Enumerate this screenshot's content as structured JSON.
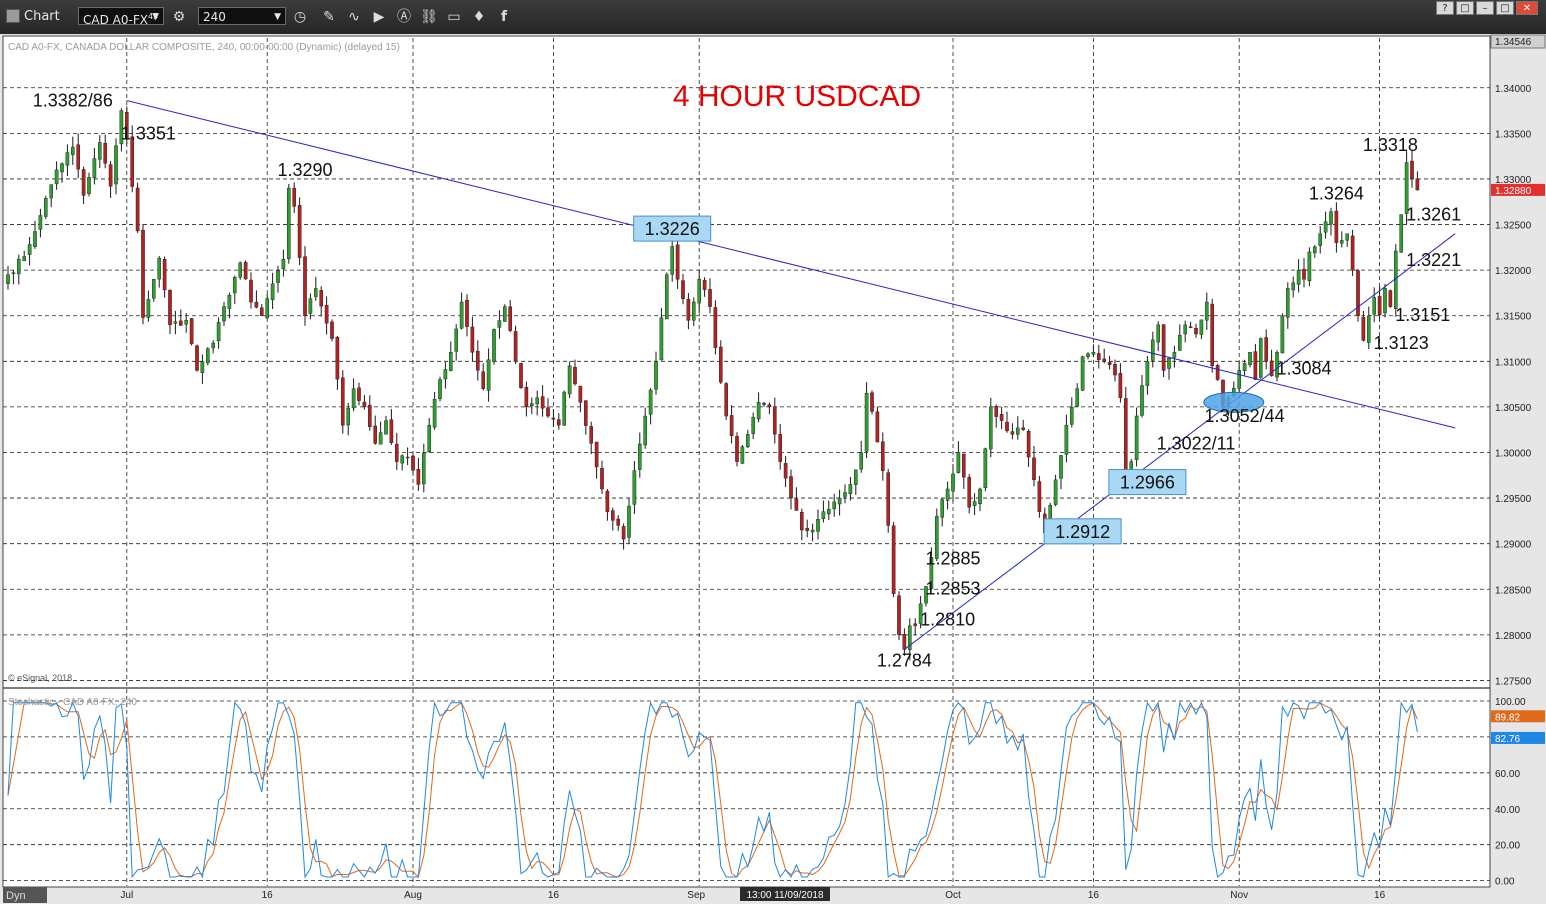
{
  "window": {
    "title": "Chart",
    "symbol": "CAD A0-FX",
    "symbol_superscript": "45",
    "interval": "240",
    "controls": [
      "?",
      "□",
      "–",
      "□",
      "✕"
    ]
  },
  "chart_data": [
    {
      "type": "candlestick",
      "header": "CAD A0-FX, CANADA DOLLAR COMPOSITE, 240, 00:00-00:00 (Dynamic) (delayed 15)",
      "title": "4 HOUR USDCAD",
      "copyright": "© eSignal, 2018",
      "xaxis_labels": [
        "Jul",
        "16",
        "Aug",
        "16",
        "Sep",
        "Oct",
        "16",
        "Nov",
        "16"
      ],
      "crosshair_time": "13:00 11/09/2018",
      "ylim": [
        1.2745,
        1.34546
      ],
      "yticks": [
        1.275,
        1.28,
        1.285,
        1.29,
        1.295,
        1.3,
        1.305,
        1.31,
        1.315,
        1.32,
        1.325,
        1.33,
        1.335,
        1.34
      ],
      "ytick_labels": [
        "1.27500",
        "1.28000",
        "1.28500",
        "1.29000",
        "1.29500",
        "1.30000",
        "1.30500",
        "1.31000",
        "1.31500",
        "1.32000",
        "1.32500",
        "1.33000",
        "1.33500",
        "1.34000"
      ],
      "top_price_label": "1.34546",
      "last_price": 1.3288,
      "last_price_label": "1.32880",
      "grid": true,
      "up_color": "#2e9e2e",
      "down_color": "#b22222",
      "series_path": [
        [
          0,
          1.3195
        ],
        [
          3,
          1.3215
        ],
        [
          6,
          1.326
        ],
        [
          9,
          1.331
        ],
        [
          12,
          1.3335
        ],
        [
          14,
          1.3282
        ],
        [
          17,
          1.334
        ],
        [
          19,
          1.3292
        ],
        [
          21,
          1.3375
        ],
        [
          22,
          1.3345
        ],
        [
          24,
          1.3243
        ],
        [
          25,
          1.3148
        ],
        [
          27,
          1.319
        ],
        [
          28,
          1.3213
        ],
        [
          30,
          1.314
        ],
        [
          33,
          1.3145
        ],
        [
          35,
          1.309
        ],
        [
          38,
          1.312
        ],
        [
          40,
          1.316
        ],
        [
          43,
          1.3208
        ],
        [
          45,
          1.3165
        ],
        [
          47,
          1.315
        ],
        [
          49,
          1.3185
        ],
        [
          51,
          1.3212
        ],
        [
          52,
          1.329
        ],
        [
          53,
          1.327
        ],
        [
          55,
          1.315
        ],
        [
          57,
          1.318
        ],
        [
          60,
          1.3125
        ],
        [
          62,
          1.303
        ],
        [
          64,
          1.307
        ],
        [
          66,
          1.305
        ],
        [
          68,
          1.301
        ],
        [
          70,
          1.3035
        ],
        [
          72,
          1.299
        ],
        [
          74,
          1.2995
        ],
        [
          76,
          1.2965
        ],
        [
          78,
          1.303
        ],
        [
          80,
          1.308
        ],
        [
          82,
          1.311
        ],
        [
          84,
          1.3165
        ],
        [
          86,
          1.311
        ],
        [
          88,
          1.307
        ],
        [
          90,
          1.3135
        ],
        [
          92,
          1.316
        ],
        [
          94,
          1.31
        ],
        [
          96,
          1.305
        ],
        [
          98,
          1.306
        ],
        [
          100,
          1.304
        ],
        [
          102,
          1.303
        ],
        [
          104,
          1.3095
        ],
        [
          106,
          1.3055
        ],
        [
          108,
          1.301
        ],
        [
          110,
          1.296
        ],
        [
          111,
          1.2935
        ],
        [
          113,
          1.292
        ],
        [
          114,
          1.2905
        ],
        [
          116,
          1.298
        ],
        [
          118,
          1.304
        ],
        [
          120,
          1.31
        ],
        [
          122,
          1.3195
        ],
        [
          123,
          1.3226
        ],
        [
          124,
          1.319
        ],
        [
          126,
          1.3145
        ],
        [
          128,
          1.319
        ],
        [
          130,
          1.316
        ],
        [
          131,
          1.3115
        ],
        [
          133,
          1.304
        ],
        [
          135,
          1.299
        ],
        [
          137,
          1.302
        ],
        [
          139,
          1.3055
        ],
        [
          141,
          1.305
        ],
        [
          143,
          1.299
        ],
        [
          145,
          1.295
        ],
        [
          147,
          1.2915
        ],
        [
          149,
          1.2915
        ],
        [
          151,
          1.2935
        ],
        [
          154,
          1.295
        ],
        [
          156,
          1.2965
        ],
        [
          158,
          1.3
        ],
        [
          159,
          1.3065
        ],
        [
          160,
          1.3045
        ],
        [
          162,
          1.298
        ],
        [
          163,
          1.292
        ],
        [
          164,
          1.2845
        ],
        [
          165,
          1.28
        ],
        [
          166,
          1.2784
        ],
        [
          167,
          1.281
        ],
        [
          168,
          1.281
        ],
        [
          170,
          1.2853
        ],
        [
          171,
          1.2885
        ],
        [
          172,
          1.293
        ],
        [
          174,
          1.296
        ],
        [
          176,
          1.3
        ],
        [
          178,
          1.294
        ],
        [
          180,
          1.296
        ],
        [
          182,
          1.305
        ],
        [
          184,
          1.3035
        ],
        [
          186,
          1.302
        ],
        [
          188,
          1.3025
        ],
        [
          190,
          1.297
        ],
        [
          191,
          1.2935
        ],
        [
          192,
          1.2912
        ],
        [
          194,
          1.297
        ],
        [
          196,
          1.303
        ],
        [
          198,
          1.307
        ],
        [
          199,
          1.3105
        ],
        [
          201,
          1.311
        ],
        [
          203,
          1.31
        ],
        [
          205,
          1.3085
        ],
        [
          206,
          1.306
        ],
        [
          207,
          1.2966
        ],
        [
          208,
          1.299
        ],
        [
          209,
          1.304
        ],
        [
          211,
          1.31
        ],
        [
          213,
          1.314
        ],
        [
          214,
          1.309
        ],
        [
          216,
          1.311
        ],
        [
          218,
          1.314
        ],
        [
          220,
          1.313
        ],
        [
          222,
          1.3165
        ],
        [
          223,
          1.3095
        ],
        [
          224,
          1.308
        ],
        [
          225,
          1.3052
        ],
        [
          226,
          1.306
        ],
        [
          228,
          1.309
        ],
        [
          230,
          1.311
        ],
        [
          231,
          1.308
        ],
        [
          232,
          1.3125
        ],
        [
          233,
          1.31
        ],
        [
          234,
          1.3084
        ],
        [
          235,
          1.311
        ],
        [
          236,
          1.315
        ],
        [
          237,
          1.318
        ],
        [
          239,
          1.32
        ],
        [
          240,
          1.319
        ],
        [
          241,
          1.322
        ],
        [
          243,
          1.324
        ],
        [
          245,
          1.3264
        ],
        [
          246,
          1.323
        ],
        [
          248,
          1.324
        ],
        [
          249,
          1.32
        ],
        [
          250,
          1.315
        ],
        [
          251,
          1.3123
        ],
        [
          252,
          1.315
        ],
        [
          253,
          1.317
        ],
        [
          254,
          1.3151
        ],
        [
          255,
          1.318
        ],
        [
          256,
          1.316
        ],
        [
          257,
          1.3221
        ],
        [
          258,
          1.3261
        ],
        [
          259,
          1.3318
        ],
        [
          260,
          1.33
        ],
        [
          261,
          1.3288
        ]
      ],
      "trendlines": [
        {
          "from": [
            22,
            1.3386
          ],
          "to": [
            268,
            1.3027
          ]
        },
        {
          "from": [
            166,
            1.2784
          ],
          "to": [
            268,
            1.324
          ]
        }
      ],
      "annotations": [
        {
          "label": "1.3382/86",
          "x": 12,
          "y": 1.3386,
          "boxed": false
        },
        {
          "label": "1.3351",
          "x": 26,
          "y": 1.335,
          "boxed": false
        },
        {
          "label": "1.3290",
          "x": 55,
          "y": 1.331,
          "boxed": false
        },
        {
          "label": "1.3226",
          "x": 123,
          "y": 1.3245,
          "boxed": true
        },
        {
          "label": "1.3318",
          "x": 256,
          "y": 1.3337,
          "boxed": false
        },
        {
          "label": "1.3264",
          "x": 246,
          "y": 1.3284,
          "boxed": false
        },
        {
          "label": "1.3261",
          "x": 264,
          "y": 1.3261,
          "boxed": false
        },
        {
          "label": "1.3221",
          "x": 264,
          "y": 1.3211,
          "boxed": false
        },
        {
          "label": "1.3151",
          "x": 262,
          "y": 1.3151,
          "boxed": false
        },
        {
          "label": "1.3123",
          "x": 258,
          "y": 1.312,
          "boxed": false
        },
        {
          "label": "1.3084",
          "x": 240,
          "y": 1.3092,
          "boxed": false
        },
        {
          "label": "1.3052/44",
          "x": 229,
          "y": 1.304,
          "boxed": false
        },
        {
          "label": "1.3022/11",
          "x": 220,
          "y": 1.301,
          "boxed": false
        },
        {
          "label": "1.2966",
          "x": 211,
          "y": 1.2967,
          "boxed": true
        },
        {
          "label": "1.2912",
          "x": 199,
          "y": 1.2913,
          "boxed": true
        },
        {
          "label": "1.2885",
          "x": 175,
          "y": 1.2884,
          "boxed": false
        },
        {
          "label": "1.2853",
          "x": 175,
          "y": 1.2851,
          "boxed": false
        },
        {
          "label": "1.2810",
          "x": 174,
          "y": 1.2817,
          "boxed": false
        },
        {
          "label": "1.2784",
          "x": 166,
          "y": 1.2772,
          "boxed": false
        }
      ],
      "highlight_ellipse": {
        "x": 227,
        "y": 1.3055
      }
    },
    {
      "type": "line",
      "header": "Stochastic - CAD A0-FX, 240",
      "ylim": [
        -3,
        105
      ],
      "yticks": [
        0,
        20,
        40,
        60,
        80,
        100
      ],
      "ytick_labels": [
        "0.00",
        "20.00",
        "40.00",
        "60.00",
        "80.00",
        "100.00"
      ],
      "series": [
        {
          "label": "89.82",
          "color": "#e06a1b",
          "last": 89.82
        },
        {
          "label": "82.76",
          "color": "#1e88e5",
          "last": 82.76
        }
      ],
      "footer_left": "Dyn"
    }
  ]
}
